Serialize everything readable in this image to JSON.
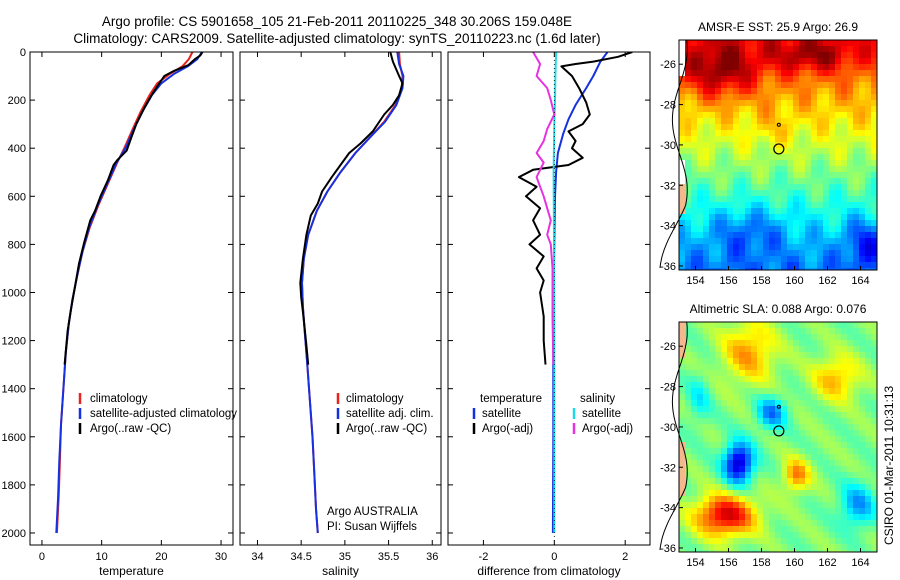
{
  "header": {
    "title_line1": "Argo profile: CS 5901658_105 21-Feb-2011 20110225_348 30.206S 159.048E",
    "title_line2": "Climatology: CARS2009. Satellite-adjusted climatology: synTS_20110223.nc (1.6d later)"
  },
  "side_stamp": "CSIRO 01-Mar-2011 10:31:13",
  "colors": {
    "red": "#e8231e",
    "blue": "#1531e0",
    "black": "#000000",
    "cyan": "#20d9e6",
    "magenta": "#e633e0"
  },
  "chart_data": [
    {
      "id": "temperature",
      "type": "line",
      "xlabel": "temperature",
      "xlim": [
        -2,
        32
      ],
      "ylim": [
        0,
        2050
      ],
      "y_inverted": true,
      "xticks": [
        0,
        10,
        20,
        30
      ],
      "yticks": [
        0,
        200,
        400,
        600,
        800,
        1000,
        1200,
        1400,
        1600,
        1800,
        2000
      ],
      "legend": {
        "position": "lower-right",
        "entries": [
          "climatology",
          "satellite-adjusted climatology",
          "Argo(..raw -QC)"
        ]
      },
      "series": [
        {
          "name": "climatology",
          "color_key": "red",
          "points": [
            [
              25.2,
              0
            ],
            [
              24.6,
              30
            ],
            [
              23.5,
              60
            ],
            [
              21.5,
              90
            ],
            [
              19.3,
              130
            ],
            [
              18.0,
              180
            ],
            [
              16.5,
              250
            ],
            [
              15.2,
              320
            ],
            [
              13.8,
              400
            ],
            [
              12.6,
              460
            ],
            [
              11.0,
              550
            ],
            [
              9.4,
              640
            ],
            [
              8.0,
              730
            ],
            [
              6.8,
              830
            ],
            [
              5.9,
              930
            ],
            [
              5.1,
              1030
            ],
            [
              4.5,
              1130
            ],
            [
              4.0,
              1250
            ],
            [
              3.6,
              1400
            ],
            [
              3.2,
              1550
            ],
            [
              3.0,
              1700
            ],
            [
              2.8,
              1850
            ],
            [
              2.5,
              2000
            ]
          ]
        },
        {
          "name": "satellite-adjusted climatology",
          "color_key": "blue",
          "points": [
            [
              26.8,
              0
            ],
            [
              26.0,
              30
            ],
            [
              24.4,
              60
            ],
            [
              22.2,
              90
            ],
            [
              20.0,
              130
            ],
            [
              18.4,
              180
            ],
            [
              16.8,
              250
            ],
            [
              15.4,
              320
            ],
            [
              14.0,
              400
            ],
            [
              12.5,
              460
            ],
            [
              10.9,
              550
            ],
            [
              9.3,
              640
            ],
            [
              7.9,
              730
            ],
            [
              6.8,
              830
            ],
            [
              5.9,
              930
            ],
            [
              5.1,
              1030
            ],
            [
              4.5,
              1130
            ],
            [
              4.0,
              1250
            ],
            [
              3.6,
              1400
            ],
            [
              3.2,
              1550
            ],
            [
              2.9,
              1700
            ],
            [
              2.7,
              1850
            ],
            [
              2.4,
              2000
            ]
          ]
        },
        {
          "name": "Argo(..raw -QC)",
          "color_key": "black",
          "points": [
            [
              26.9,
              0
            ],
            [
              26.5,
              15
            ],
            [
              25.6,
              30
            ],
            [
              24.5,
              55
            ],
            [
              22.0,
              80
            ],
            [
              20.5,
              100
            ],
            [
              19.4,
              140
            ],
            [
              18.6,
              170
            ],
            [
              17.2,
              230
            ],
            [
              15.8,
              300
            ],
            [
              14.9,
              360
            ],
            [
              14.2,
              410
            ],
            [
              12.6,
              450
            ],
            [
              12.0,
              470
            ],
            [
              11.1,
              530
            ],
            [
              9.8,
              600
            ],
            [
              8.9,
              660
            ],
            [
              8.1,
              700
            ],
            [
              7.1,
              790
            ],
            [
              6.2,
              880
            ],
            [
              5.5,
              980
            ],
            [
              4.8,
              1080
            ],
            [
              4.3,
              1160
            ],
            [
              3.8,
              1300
            ]
          ]
        }
      ]
    },
    {
      "id": "salinity",
      "type": "line",
      "xlabel": "salinity",
      "xlim": [
        33.8,
        36.1
      ],
      "ylim": [
        0,
        2050
      ],
      "y_inverted": true,
      "xticks": [
        34,
        34.5,
        35,
        35.5,
        36
      ],
      "legend": {
        "position": "lower-right",
        "entries": [
          "climatology",
          "satellite adj. clim.",
          "Argo(..raw -QC)"
        ]
      },
      "annotation": {
        "line1": "Argo AUSTRALIA",
        "line2": "PI: Susan Wijffels"
      },
      "series": [
        {
          "name": "climatology",
          "color_key": "red",
          "points": [
            [
              35.62,
              0
            ],
            [
              35.63,
              50
            ],
            [
              35.66,
              100
            ],
            [
              35.65,
              150
            ],
            [
              35.58,
              220
            ],
            [
              35.45,
              290
            ],
            [
              35.3,
              350
            ],
            [
              35.12,
              420
            ],
            [
              34.95,
              500
            ],
            [
              34.8,
              580
            ],
            [
              34.68,
              660
            ],
            [
              34.58,
              760
            ],
            [
              34.53,
              860
            ],
            [
              34.51,
              960
            ],
            [
              34.52,
              1060
            ],
            [
              34.54,
              1160
            ],
            [
              34.57,
              1300
            ],
            [
              34.6,
              1450
            ],
            [
              34.63,
              1600
            ],
            [
              34.65,
              1750
            ],
            [
              34.67,
              1900
            ],
            [
              34.69,
              2000
            ]
          ]
        },
        {
          "name": "satellite adj. clim.",
          "color_key": "blue",
          "points": [
            [
              35.6,
              0
            ],
            [
              35.62,
              50
            ],
            [
              35.67,
              100
            ],
            [
              35.66,
              150
            ],
            [
              35.59,
              220
            ],
            [
              35.46,
              290
            ],
            [
              35.3,
              350
            ],
            [
              35.12,
              420
            ],
            [
              34.95,
              500
            ],
            [
              34.8,
              580
            ],
            [
              34.68,
              660
            ],
            [
              34.58,
              760
            ],
            [
              34.53,
              860
            ],
            [
              34.51,
              960
            ],
            [
              34.52,
              1060
            ],
            [
              34.54,
              1160
            ],
            [
              34.57,
              1300
            ],
            [
              34.6,
              1450
            ],
            [
              34.63,
              1600
            ],
            [
              34.65,
              1750
            ],
            [
              34.67,
              1900
            ],
            [
              34.69,
              2000
            ]
          ]
        },
        {
          "name": "Argo(..raw -QC)",
          "color_key": "black",
          "points": [
            [
              35.52,
              0
            ],
            [
              35.55,
              40
            ],
            [
              35.62,
              100
            ],
            [
              35.66,
              130
            ],
            [
              35.62,
              180
            ],
            [
              35.55,
              220
            ],
            [
              35.45,
              260
            ],
            [
              35.32,
              330
            ],
            [
              35.18,
              380
            ],
            [
              35.05,
              420
            ],
            [
              34.95,
              470
            ],
            [
              34.85,
              520
            ],
            [
              34.74,
              580
            ],
            [
              34.69,
              630
            ],
            [
              34.61,
              680
            ],
            [
              34.56,
              760
            ],
            [
              34.52,
              860
            ],
            [
              34.49,
              960
            ],
            [
              34.5,
              1020
            ],
            [
              34.52,
              1080
            ],
            [
              34.54,
              1150
            ],
            [
              34.56,
              1220
            ],
            [
              34.58,
              1300
            ]
          ]
        }
      ]
    },
    {
      "id": "difference",
      "type": "line",
      "xlabel": "difference from climatology",
      "xlim": [
        -3,
        2.7
      ],
      "ylim": [
        0,
        2050
      ],
      "y_inverted": true,
      "xticks": [
        -2,
        0,
        2
      ],
      "legend": {
        "position": "lower-center",
        "columns": [
          {
            "heading": "temperature",
            "entries": [
              "satellite",
              "Argo(-adj)"
            ]
          },
          {
            "heading": "salinity",
            "entries": [
              "satellite",
              "Argo(-adj)"
            ]
          }
        ]
      },
      "series": [
        {
          "name": "temperature satellite",
          "color_key": "blue",
          "points": [
            [
              1.5,
              0
            ],
            [
              1.3,
              40
            ],
            [
              1.1,
              100
            ],
            [
              0.9,
              150
            ],
            [
              0.6,
              220
            ],
            [
              0.4,
              280
            ],
            [
              0.25,
              340
            ],
            [
              0.1,
              420
            ],
            [
              0.05,
              500
            ],
            [
              0.02,
              600
            ],
            [
              0.0,
              800
            ],
            [
              -0.02,
              1000
            ],
            [
              -0.03,
              1300
            ],
            [
              -0.03,
              1600
            ],
            [
              -0.04,
              2000
            ]
          ]
        },
        {
          "name": "temperature Argo(-adj)",
          "color_key": "black",
          "points": [
            [
              2.2,
              0
            ],
            [
              1.8,
              20
            ],
            [
              1.1,
              40
            ],
            [
              0.6,
              50
            ],
            [
              0.2,
              60
            ],
            [
              0.5,
              100
            ],
            [
              0.7,
              150
            ],
            [
              0.9,
              210
            ],
            [
              1.0,
              260
            ],
            [
              0.8,
              300
            ],
            [
              0.4,
              330
            ],
            [
              0.6,
              370
            ],
            [
              0.5,
              400
            ],
            [
              0.8,
              440
            ],
            [
              0.4,
              470
            ],
            [
              -0.6,
              490
            ],
            [
              -1.0,
              520
            ],
            [
              -0.5,
              560
            ],
            [
              -0.8,
              600
            ],
            [
              -0.4,
              650
            ],
            [
              -0.6,
              700
            ],
            [
              -0.4,
              760
            ],
            [
              -0.7,
              800
            ],
            [
              -0.3,
              850
            ],
            [
              -0.5,
              900
            ],
            [
              -0.3,
              950
            ],
            [
              -0.4,
              1000
            ],
            [
              -0.3,
              1100
            ],
            [
              -0.3,
              1200
            ],
            [
              -0.25,
              1300
            ]
          ]
        },
        {
          "name": "salinity satellite",
          "color_key": "cyan",
          "points": [
            [
              0.05,
              0
            ],
            [
              0.03,
              100
            ],
            [
              0.02,
              200
            ],
            [
              0.0,
              300
            ],
            [
              -0.02,
              500
            ],
            [
              -0.01,
              800
            ],
            [
              0.0,
              1200
            ],
            [
              0.0,
              1600
            ],
            [
              0.0,
              2000
            ]
          ]
        },
        {
          "name": "salinity Argo(-adj)",
          "color_key": "magenta",
          "points": [
            [
              -0.6,
              0
            ],
            [
              -0.4,
              50
            ],
            [
              -0.5,
              100
            ],
            [
              -0.2,
              150
            ],
            [
              -0.1,
              200
            ],
            [
              0.0,
              260
            ],
            [
              -0.2,
              320
            ],
            [
              -0.3,
              370
            ],
            [
              -0.5,
              420
            ],
            [
              -0.3,
              460
            ],
            [
              -0.5,
              520
            ],
            [
              -0.4,
              560
            ],
            [
              -0.3,
              600
            ],
            [
              -0.2,
              650
            ],
            [
              -0.1,
              700
            ],
            [
              -0.2,
              760
            ],
            [
              -0.1,
              800
            ],
            [
              -0.05,
              900
            ],
            [
              -0.05,
              1000
            ],
            [
              -0.05,
              1100
            ],
            [
              -0.04,
              1200
            ],
            [
              -0.03,
              1300
            ]
          ]
        }
      ]
    },
    {
      "id": "sst_map",
      "type": "heatmap",
      "title": "AMSR-E SST: 25.9  Argo: 26.9",
      "xlim": [
        153,
        165
      ],
      "ylim": [
        -36.2,
        -24.8
      ],
      "xticks": [
        154,
        156,
        158,
        160,
        162,
        164
      ],
      "yticks": [
        -26,
        -28,
        -30,
        -32,
        -34,
        -36
      ],
      "marker": {
        "lon": 159.05,
        "lat": -30.2
      }
    },
    {
      "id": "sla_map",
      "type": "heatmap",
      "title": "Altimetric SLA: 0.088  Argo: 0.076",
      "xlim": [
        153,
        165
      ],
      "ylim": [
        -36.2,
        -24.8
      ],
      "xticks": [
        154,
        156,
        158,
        160,
        162,
        164
      ],
      "yticks": [
        -26,
        -28,
        -30,
        -32,
        -34,
        -36
      ],
      "marker": {
        "lon": 159.05,
        "lat": -30.2
      }
    }
  ]
}
